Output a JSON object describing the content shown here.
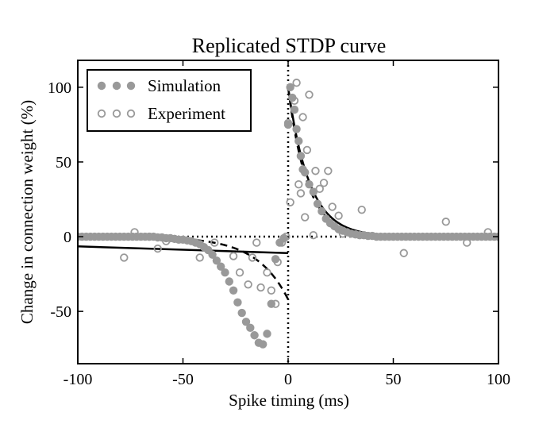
{
  "chart_data": {
    "type": "scatter",
    "title": "Replicated STDP curve",
    "xlabel": "Spike timing (ms)",
    "ylabel": "Change in connection weight (%)",
    "xlim": [
      -100,
      100
    ],
    "ylim": [
      -85,
      118
    ],
    "xticks": [
      -100,
      -50,
      0,
      50,
      100
    ],
    "xtick_labels": [
      "-100",
      "-50",
      "0",
      "50",
      "100"
    ],
    "yticks": [
      -50,
      0,
      50,
      100
    ],
    "ytick_labels": [
      "-50",
      "0",
      "50",
      "100"
    ],
    "grid": false,
    "legend": {
      "placement": "top-left"
    },
    "reference_lines": {
      "x": 0,
      "y": 0,
      "style": "dotted"
    },
    "series": [
      {
        "name": "Simulation",
        "marker": "filled-circle",
        "color": "#999999",
        "x": [
          -100,
          -98,
          -96,
          -94,
          -92,
          -90,
          -88,
          -86,
          -84,
          -82,
          -80,
          -78,
          -76,
          -74,
          -72,
          -70,
          -68,
          -66,
          -64,
          -62,
          -60,
          -58,
          -56,
          -54,
          -52,
          -50,
          -48,
          -46,
          -44,
          -42,
          -40,
          -38,
          -36,
          -34,
          -32,
          -30,
          -28,
          -26,
          -24,
          -22,
          -20,
          -18,
          -16,
          -14,
          -12,
          -10,
          -8,
          -6,
          -4,
          -2,
          0,
          1,
          2,
          3,
          4,
          5,
          6,
          7,
          8,
          10,
          12,
          14,
          16,
          18,
          20,
          22,
          24,
          26,
          28,
          30,
          32,
          34,
          36,
          38,
          40,
          42,
          44,
          46,
          48,
          50,
          52,
          54,
          56,
          58,
          60,
          62,
          64,
          66,
          68,
          70,
          72,
          74,
          76,
          78,
          80,
          82,
          84,
          86,
          88,
          90,
          92,
          94,
          96,
          98,
          100
        ],
        "y": [
          0,
          0,
          0,
          0,
          0,
          0,
          0,
          0,
          0,
          0,
          0,
          0,
          0,
          0,
          0,
          0,
          0,
          0,
          0,
          -0.5,
          -0.5,
          -1,
          -1,
          -1.5,
          -2,
          -2,
          -2.5,
          -3,
          -4,
          -5,
          -7,
          -9,
          -12,
          -16,
          -20,
          -24,
          -30,
          -36,
          -44,
          -51,
          -57,
          -61,
          -66,
          -71,
          -72,
          -65,
          -45,
          -15,
          -4,
          -1,
          75,
          100,
          93,
          85,
          72,
          64,
          54,
          45,
          43,
          35,
          30,
          22,
          17,
          12,
          9,
          7,
          5,
          4,
          3,
          2,
          1.5,
          1,
          1,
          0.5,
          0.5,
          0,
          0,
          0,
          0,
          0,
          0,
          0,
          0,
          0,
          0,
          0,
          0,
          0,
          0,
          0,
          0,
          0,
          0,
          0,
          0,
          0,
          0,
          0,
          0,
          0,
          0,
          0,
          0,
          0,
          0
        ]
      },
      {
        "name": "Experiment",
        "marker": "open-circle",
        "color": "#999999",
        "x": [
          -78,
          -73,
          -66,
          -62,
          -58,
          -42,
          -35,
          -26,
          -23,
          -19,
          -17,
          -15,
          -13,
          -10,
          -8,
          -6,
          -5,
          -3,
          -2,
          -1,
          0,
          1,
          3,
          4,
          5,
          6,
          7,
          8,
          9,
          10,
          12,
          13,
          15,
          17,
          19,
          21,
          24,
          26,
          35,
          55,
          75,
          85,
          95
        ],
        "y": [
          -14,
          3,
          0,
          -8,
          -3,
          -14,
          -4,
          -13,
          -24,
          -32,
          -14,
          -4,
          -34,
          -24,
          -36,
          -45,
          -17,
          -4,
          -1,
          0,
          76,
          23,
          91,
          103,
          35,
          29,
          80,
          13,
          58,
          95,
          1,
          44,
          32,
          36,
          44,
          20,
          14,
          2,
          18,
          -11,
          10,
          -4,
          3
        ]
      }
    ],
    "fit_lines": [
      {
        "style": "solid",
        "color": "#000000",
        "branch": "negative",
        "x": [
          -100,
          0
        ],
        "y": [
          -6.5,
          -11
        ]
      },
      {
        "style": "solid",
        "color": "#000000",
        "branch": "positive",
        "formula": "100*exp(-x/10)",
        "x_range": [
          0,
          100
        ]
      },
      {
        "style": "dashed",
        "color": "#000000",
        "branch": "negative",
        "formula": "-42*exp(x/15)",
        "x_range": [
          -100,
          0
        ]
      },
      {
        "style": "dashed",
        "color": "#000000",
        "branch": "positive",
        "formula": "100*exp(-x/9)",
        "x_range": [
          0,
          100
        ]
      }
    ]
  }
}
